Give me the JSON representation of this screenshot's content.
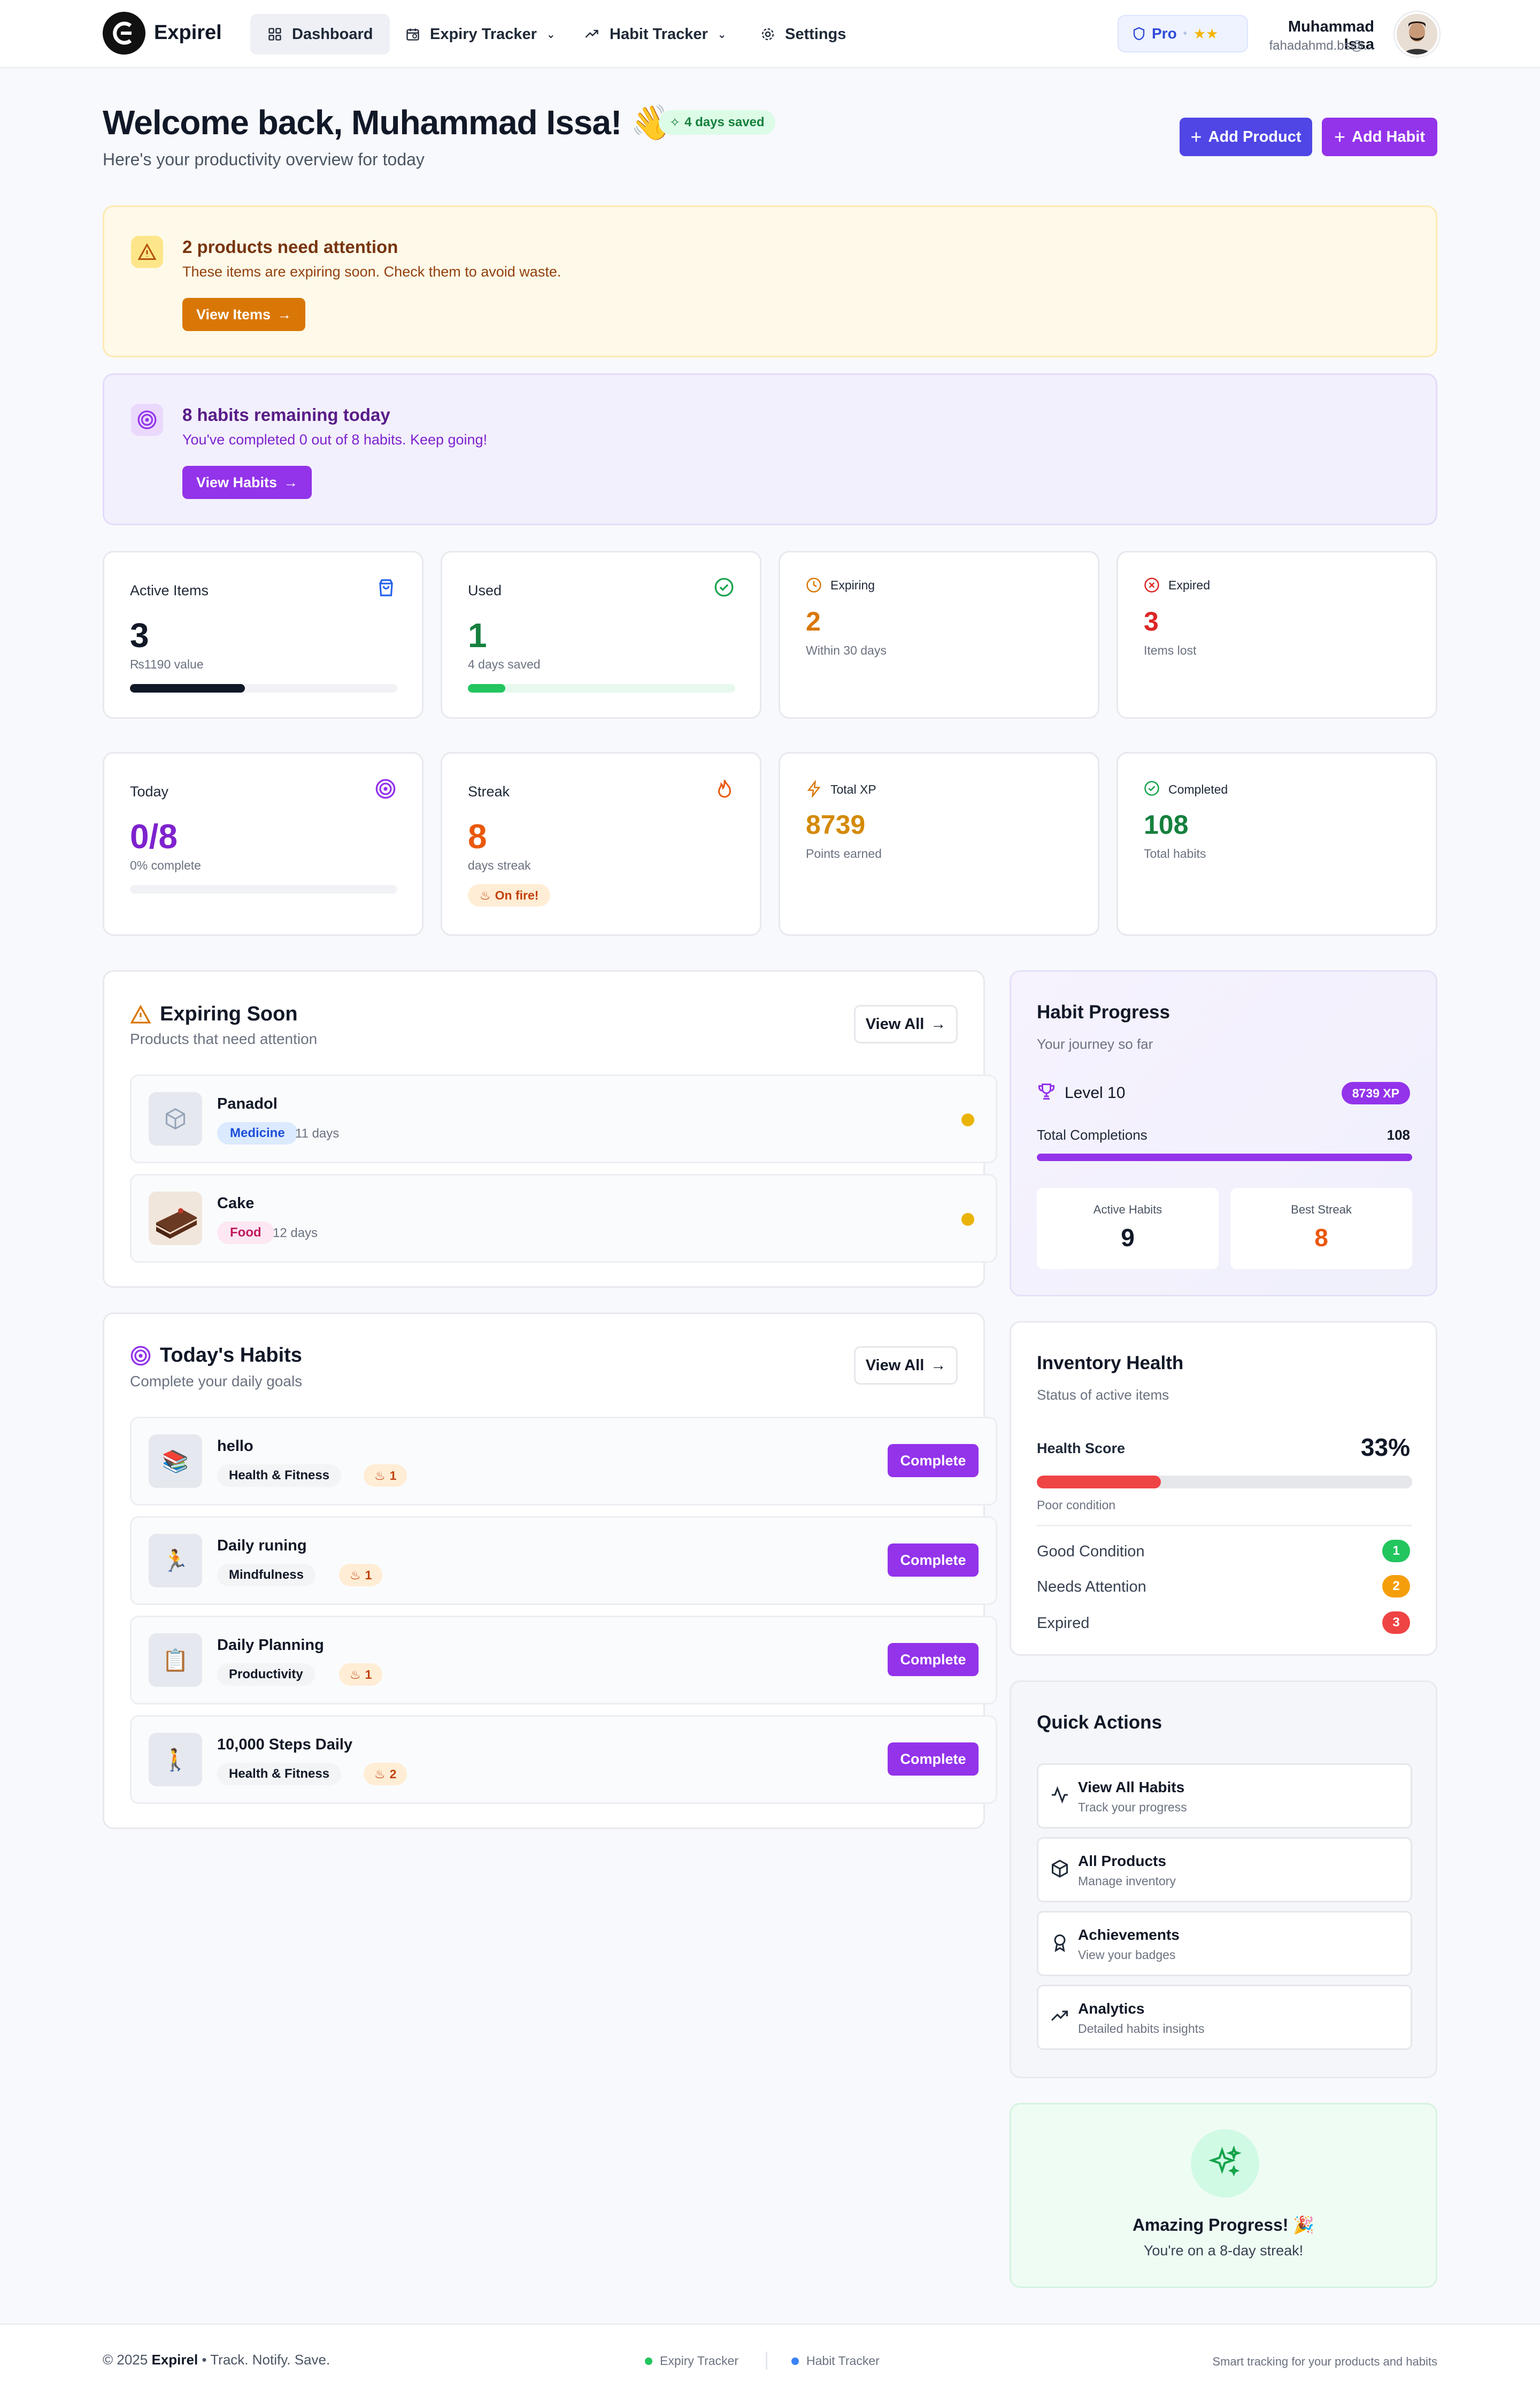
{
  "header": {
    "brand": "Expirel",
    "nav": [
      {
        "label": "Dashboard"
      },
      {
        "label": "Expiry Tracker"
      },
      {
        "label": "Habit Tracker"
      },
      {
        "label": "Settings"
      }
    ],
    "plan": "Pro",
    "stars": "★★",
    "user_name": "Muhammad Issa",
    "user_email": "fahadahmd.bs@..."
  },
  "welcome": {
    "title": "Welcome back, Muhammad Issa! 👋",
    "subtitle": "Here's your productivity overview for today",
    "badge": "4 days saved",
    "add_product": "Add Product",
    "add_habit": "Add Habit"
  },
  "alerts": {
    "products": {
      "title": "2 products need attention",
      "desc": "These items are expiring soon. Check them to avoid waste.",
      "button": "View Items"
    },
    "habits": {
      "title": "8 habits remaining today",
      "desc": "You've completed 0 out of 8 habits. Keep going!",
      "button": "View Habits"
    }
  },
  "stats": {
    "active": {
      "label": "Active Items",
      "value": "3",
      "caption": "₨1190 value",
      "progress": 0.43
    },
    "used": {
      "label": "Used",
      "value": "1",
      "caption": "4 days saved",
      "progress": 0.14
    },
    "expiring": {
      "label": "Expiring",
      "value": "2",
      "caption": "Within 30 days"
    },
    "expired": {
      "label": "Expired",
      "value": "3",
      "caption": "Items lost"
    },
    "today": {
      "label": "Today",
      "value": "0/8",
      "caption": "0% complete",
      "progress": 0
    },
    "streak": {
      "label": "Streak",
      "value": "8",
      "caption": "days streak",
      "badge": "On fire!"
    },
    "xp": {
      "label": "Total XP",
      "value": "8739",
      "caption": "Points earned"
    },
    "completed": {
      "label": "Completed",
      "value": "108",
      "caption": "Total habits"
    }
  },
  "expiring_soon": {
    "title": "Expiring Soon",
    "subtitle": "Products that need attention",
    "view_all": "View All",
    "items": [
      {
        "name": "Panadol",
        "category": "Medicine",
        "days": "11 days"
      },
      {
        "name": "Cake",
        "category": "Food",
        "days": "12 days"
      }
    ]
  },
  "todays_habits": {
    "title": "Today's Habits",
    "subtitle": "Complete your daily goals",
    "view_all": "View All",
    "complete_label": "Complete",
    "items": [
      {
        "name": "hello",
        "category": "Health & Fitness",
        "streak": "1",
        "emoji": "📚"
      },
      {
        "name": "Daily runing",
        "category": "Mindfulness",
        "streak": "1",
        "emoji": "🏃"
      },
      {
        "name": "Daily Planning",
        "category": "Productivity",
        "streak": "1",
        "emoji": "📋"
      },
      {
        "name": "10,000 Steps Daily",
        "category": "Health & Fitness",
        "streak": "2",
        "emoji": "🚶"
      }
    ]
  },
  "habit_progress": {
    "title": "Habit Progress",
    "subtitle": "Your journey so far",
    "level": "Level 10",
    "xp_badge": "8739 XP",
    "total_label": "Total Completions",
    "total_value": "108",
    "total_progress": 1,
    "active_label": "Active Habits",
    "active_value": "9",
    "best_label": "Best Streak",
    "best_value": "8"
  },
  "inventory": {
    "title": "Inventory Health",
    "subtitle": "Status of active items",
    "score_label": "Health Score",
    "score_value": "33%",
    "score_progress": 0.33,
    "condition": "Poor condition",
    "rows": [
      {
        "label": "Good Condition",
        "count": "1",
        "color": "#22c55e"
      },
      {
        "label": "Needs Attention",
        "count": "2",
        "color": "#f59e0b"
      },
      {
        "label": "Expired",
        "count": "3",
        "color": "#ef4444"
      }
    ]
  },
  "quick_actions": {
    "title": "Quick Actions",
    "items": [
      {
        "name": "View All Habits",
        "desc": "Track your progress",
        "icon": "activity-icon"
      },
      {
        "name": "All Products",
        "desc": "Manage inventory",
        "icon": "box-icon"
      },
      {
        "name": "Achievements",
        "desc": "View your badges",
        "icon": "award-icon"
      },
      {
        "name": "Analytics",
        "desc": "Detailed habits insights",
        "icon": "trending-icon"
      }
    ]
  },
  "progress_card": {
    "title": "Amazing Progress! 🎉",
    "desc": "You're on a 8-day streak!"
  },
  "footer": {
    "copyright_pre": "© 2025 ",
    "brand": "Expirel",
    "tagline": " • Track. Notify. Save.",
    "link1": "Expiry Tracker",
    "link2": "Habit Tracker",
    "right": "Smart tracking for your products and habits"
  },
  "colors": {
    "primary": "#4f46e5",
    "habit": "#9333ea",
    "orange": "#d97706",
    "green": "#15803d",
    "red": "#dc2626"
  }
}
